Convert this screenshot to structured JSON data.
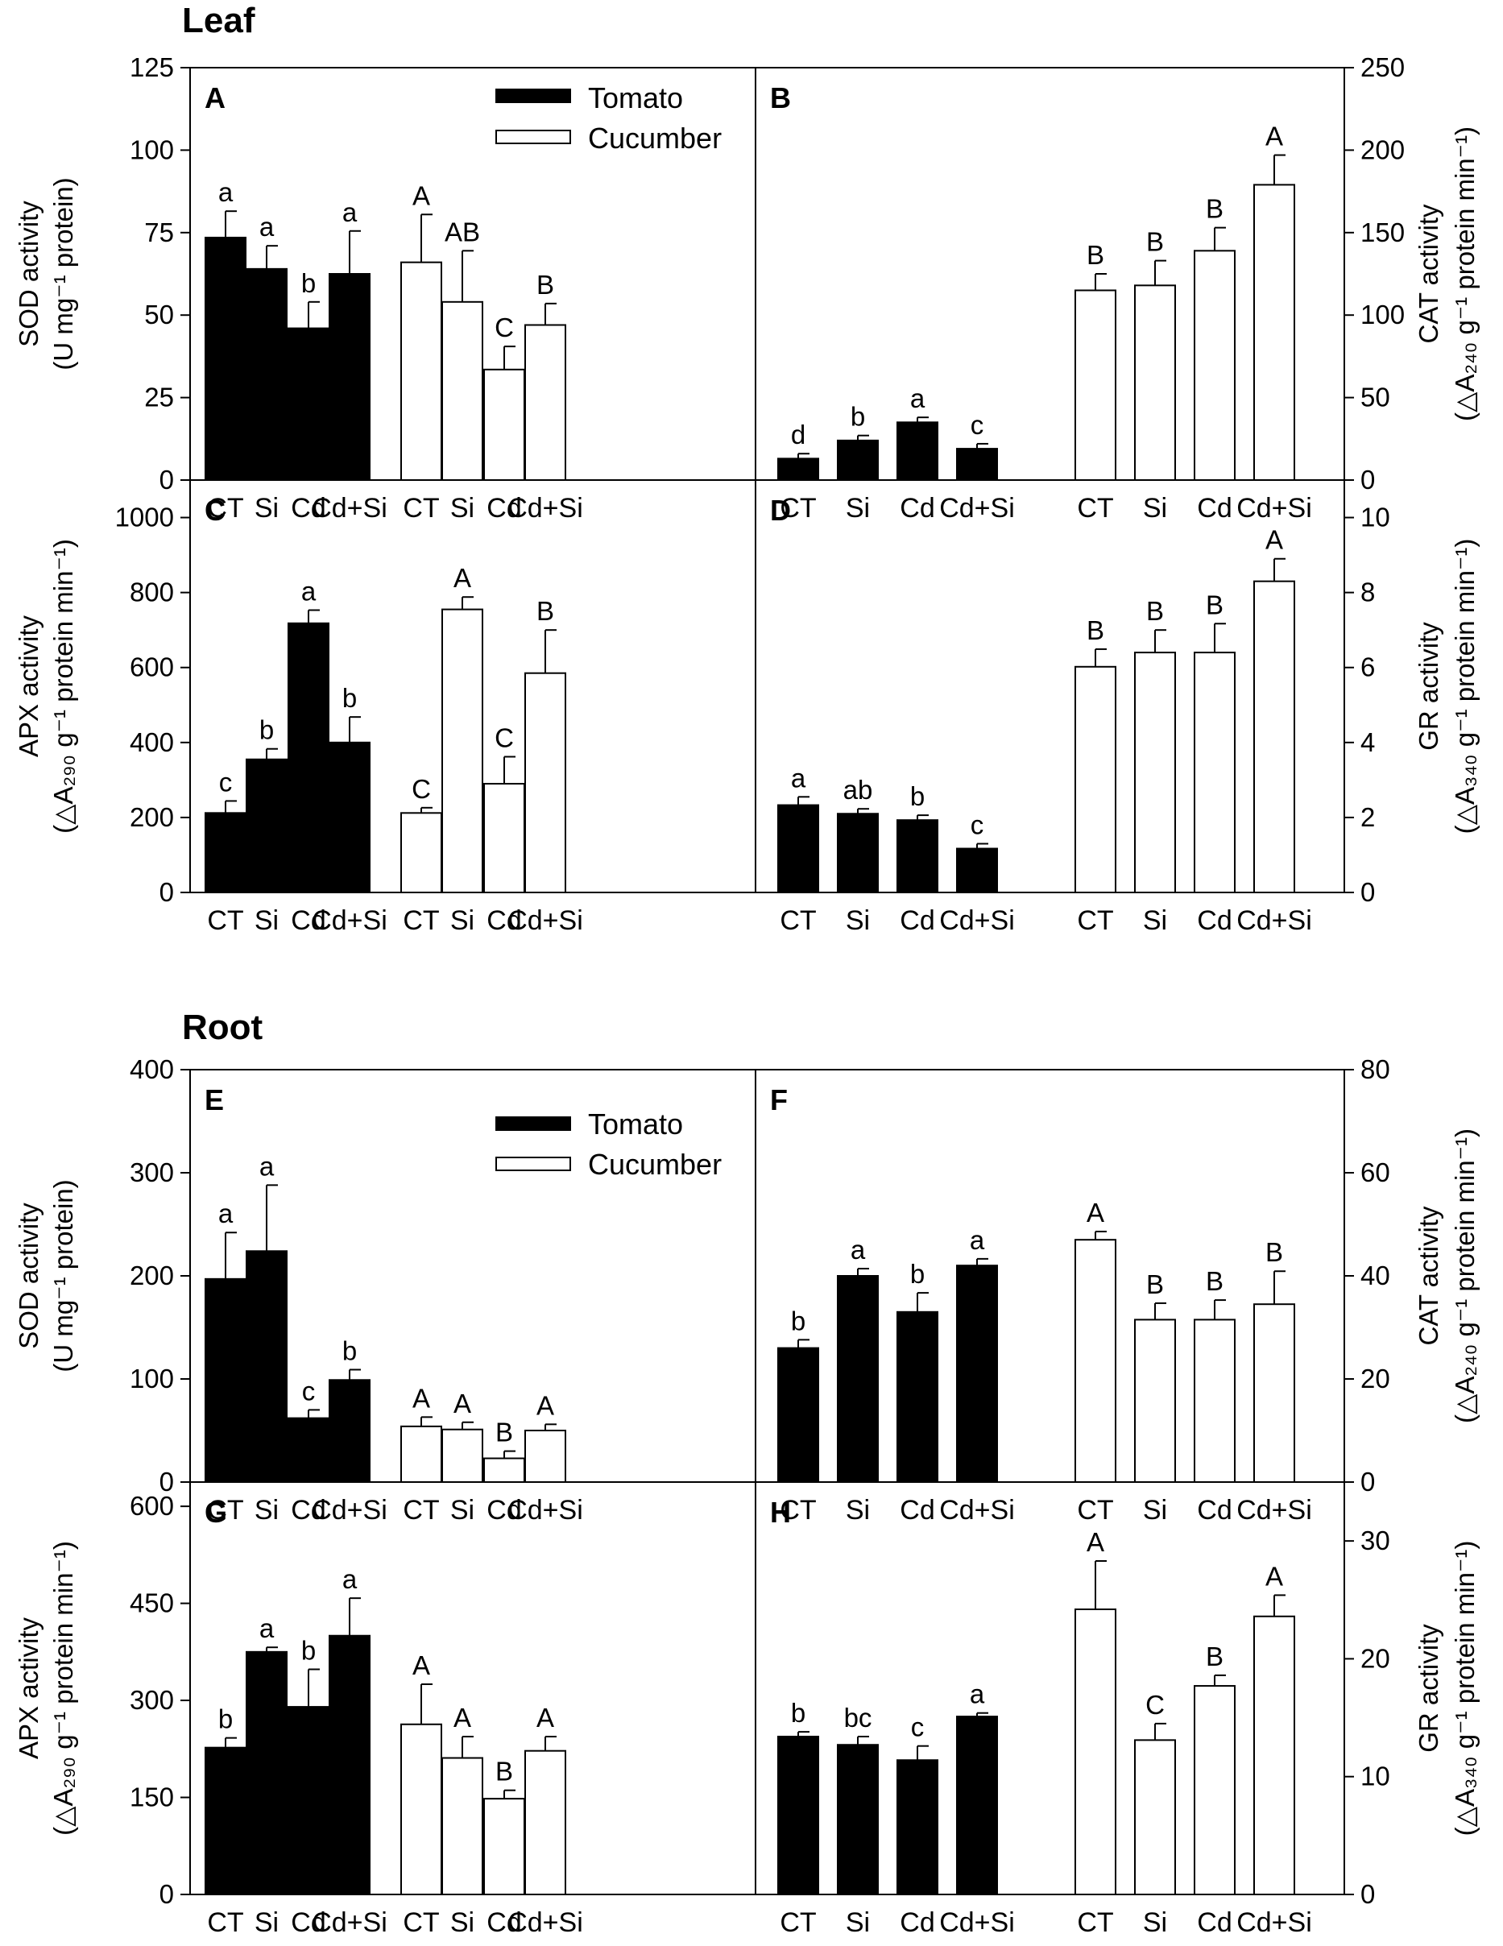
{
  "sections": [
    {
      "id": "leaf",
      "title": "Leaf"
    },
    {
      "id": "root",
      "title": "Root"
    }
  ],
  "legend": {
    "tomato": "Tomato",
    "cucumber": "Cucumber"
  },
  "colors": {
    "tomato": "#000000",
    "cucumber": "#ffffff",
    "axis": "#000000"
  },
  "chart_data": [
    {
      "panel": "A",
      "section": "Leaf",
      "type": "bar",
      "side": "left",
      "title": "",
      "xlabel": "",
      "ylabel_line1": "SOD activity",
      "ylabel_line2": "(U mg⁻¹ protein)",
      "ylim": [
        0,
        125
      ],
      "yticks": [
        0,
        25,
        50,
        75,
        100,
        125
      ],
      "categories": [
        "CT",
        "Si",
        "Cd",
        "Cd+Si"
      ],
      "series": [
        {
          "name": "Tomato",
          "values": [
            73.5,
            64,
            46,
            62.5
          ],
          "errors": [
            8,
            7,
            8,
            13
          ],
          "letters": [
            "a",
            "a",
            "b",
            "a"
          ]
        },
        {
          "name": "Cucumber",
          "values": [
            66,
            54,
            33.5,
            47
          ],
          "errors": [
            14.5,
            15.5,
            7,
            6.5
          ],
          "letters": [
            "A",
            "AB",
            "C",
            "B"
          ]
        }
      ]
    },
    {
      "panel": "B",
      "section": "Leaf",
      "type": "bar",
      "side": "right",
      "title": "",
      "xlabel": "",
      "ylabel_line1": "CAT activity",
      "ylabel_line2": "(△A₂₄₀ g⁻¹ protein min⁻¹)",
      "ylim": [
        0,
        250
      ],
      "yticks": [
        0,
        50,
        100,
        150,
        200,
        250
      ],
      "categories": [
        "CT",
        "Si",
        "Cd",
        "Cd+Si"
      ],
      "series": [
        {
          "name": "Tomato",
          "values": [
            13,
            24,
            35,
            19
          ],
          "errors": [
            3,
            3,
            3,
            3
          ],
          "letters": [
            "d",
            "b",
            "a",
            "c"
          ]
        },
        {
          "name": "Cucumber",
          "values": [
            115,
            118,
            139,
            179
          ],
          "errors": [
            10,
            15,
            14,
            18
          ],
          "letters": [
            "B",
            "B",
            "B",
            "A"
          ]
        }
      ]
    },
    {
      "panel": "C",
      "section": "Leaf",
      "type": "bar",
      "side": "left",
      "title": "",
      "xlabel": "",
      "ylabel_line1": "APX activity",
      "ylabel_line2": "(△A₂₉₀ g⁻¹ protein min⁻¹)",
      "ylim": [
        0,
        1100
      ],
      "yticks": [
        0,
        200,
        400,
        600,
        800,
        1000
      ],
      "categories": [
        "CT",
        "Si",
        "Cd",
        "Cd+Si"
      ],
      "series": [
        {
          "name": "Tomato",
          "values": [
            212,
            355,
            718,
            400
          ],
          "errors": [
            32,
            28,
            35,
            68
          ],
          "letters": [
            "c",
            "b",
            "a",
            "b"
          ]
        },
        {
          "name": "Cucumber",
          "values": [
            212,
            755,
            290,
            585
          ],
          "errors": [
            14,
            33,
            72,
            115
          ],
          "letters": [
            "C",
            "A",
            "C",
            "B"
          ]
        }
      ]
    },
    {
      "panel": "D",
      "section": "Leaf",
      "type": "bar",
      "side": "right",
      "title": "",
      "xlabel": "",
      "ylabel_line1": "GR activity",
      "ylabel_line2": "(△A₃₄₀ g⁻¹ protein min⁻¹)",
      "ylim": [
        0,
        11
      ],
      "yticks": [
        0,
        2,
        4,
        6,
        8,
        10
      ],
      "categories": [
        "CT",
        "Si",
        "Cd",
        "Cd+Si"
      ],
      "series": [
        {
          "name": "Tomato",
          "values": [
            2.33,
            2.1,
            1.93,
            1.17
          ],
          "errors": [
            0.22,
            0.13,
            0.13,
            0.13
          ],
          "letters": [
            "a",
            "ab",
            "b",
            "c"
          ]
        },
        {
          "name": "Cucumber",
          "values": [
            6.02,
            6.4,
            6.4,
            8.3
          ],
          "errors": [
            0.47,
            0.6,
            0.77,
            0.6
          ],
          "letters": [
            "B",
            "B",
            "B",
            "A"
          ]
        }
      ]
    },
    {
      "panel": "E",
      "section": "Root",
      "type": "bar",
      "side": "left",
      "title": "",
      "xlabel": "",
      "ylabel_line1": "SOD activity",
      "ylabel_line2": "(U mg⁻¹ protein)",
      "ylim": [
        0,
        400
      ],
      "yticks": [
        0,
        100,
        200,
        300,
        400
      ],
      "categories": [
        "CT",
        "Si",
        "Cd",
        "Cd+Si"
      ],
      "series": [
        {
          "name": "Tomato",
          "values": [
            197,
            224,
            62,
            99
          ],
          "errors": [
            45,
            64,
            8,
            10
          ],
          "letters": [
            "a",
            "a",
            "c",
            "b"
          ]
        },
        {
          "name": "Cucumber",
          "values": [
            54,
            51,
            23,
            50
          ],
          "errors": [
            9,
            7,
            7,
            6
          ],
          "letters": [
            "A",
            "A",
            "B",
            "A"
          ]
        }
      ]
    },
    {
      "panel": "F",
      "section": "Root",
      "type": "bar",
      "side": "right",
      "title": "",
      "xlabel": "",
      "ylabel_line1": "CAT activity",
      "ylabel_line2": "(△A₂₄₀ g⁻¹ protein min⁻¹)",
      "ylim": [
        0,
        80
      ],
      "yticks": [
        0,
        20,
        40,
        60,
        80
      ],
      "categories": [
        "CT",
        "Si",
        "Cd",
        "Cd+Si"
      ],
      "series": [
        {
          "name": "Tomato",
          "values": [
            26,
            40,
            33,
            42
          ],
          "errors": [
            1.6,
            1.4,
            3.7,
            1.3
          ],
          "letters": [
            "b",
            "a",
            "b",
            "a"
          ]
        },
        {
          "name": "Cucumber",
          "values": [
            47,
            31.5,
            31.5,
            34.5
          ],
          "errors": [
            1.6,
            3.2,
            3.8,
            6.4
          ],
          "letters": [
            "A",
            "B",
            "B",
            "B"
          ]
        }
      ]
    },
    {
      "panel": "G",
      "section": "Root",
      "type": "bar",
      "side": "left",
      "title": "",
      "xlabel": "",
      "ylabel_line1": "APX activity",
      "ylabel_line2": "(△A₂₉₀ g⁻¹ protein min⁻¹)",
      "ylim": [
        0,
        637.5
      ],
      "yticks": [
        0,
        150,
        300,
        450,
        600
      ],
      "categories": [
        "CT",
        "Si",
        "Cd",
        "Cd+Si"
      ],
      "series": [
        {
          "name": "Tomato",
          "values": [
            227,
            375,
            290,
            400
          ],
          "errors": [
            15,
            7,
            58,
            58
          ],
          "letters": [
            "b",
            "a",
            "b",
            "a"
          ]
        },
        {
          "name": "Cucumber",
          "values": [
            263,
            211,
            148,
            222
          ],
          "errors": [
            62,
            33,
            13,
            22
          ],
          "letters": [
            "A",
            "A",
            "B",
            "A"
          ]
        }
      ]
    },
    {
      "panel": "H",
      "section": "Root",
      "type": "bar",
      "side": "right",
      "title": "",
      "xlabel": "",
      "ylabel_line1": "GR activity",
      "ylabel_line2": "(△A₃₄₀ g⁻¹ protein min⁻¹)",
      "ylim": [
        0,
        35
      ],
      "yticks": [
        0,
        10,
        20,
        30
      ],
      "categories": [
        "CT",
        "Si",
        "Cd",
        "Cd+Si"
      ],
      "series": [
        {
          "name": "Tomato",
          "values": [
            13.4,
            12.7,
            11.4,
            15.1
          ],
          "errors": [
            0.4,
            0.7,
            1.2,
            0.3
          ],
          "letters": [
            "b",
            "bc",
            "c",
            "a"
          ]
        },
        {
          "name": "Cucumber",
          "values": [
            24.2,
            13.1,
            17.7,
            23.6
          ],
          "errors": [
            4.1,
            1.4,
            0.9,
            1.8
          ],
          "letters": [
            "A",
            "C",
            "B",
            "A"
          ]
        }
      ]
    }
  ]
}
